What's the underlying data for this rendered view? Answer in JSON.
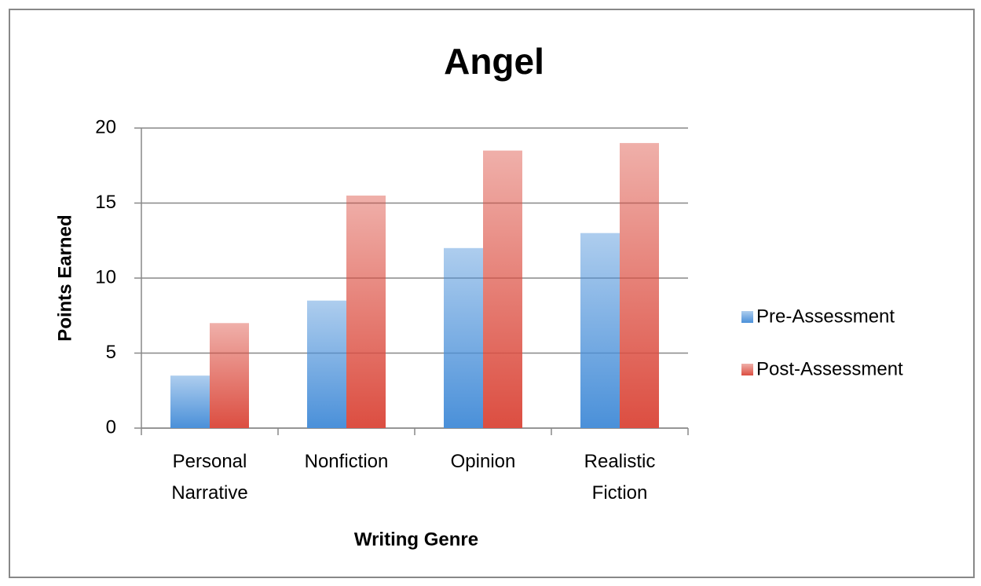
{
  "chart_data": {
    "type": "bar",
    "title": "Angel",
    "x_label": "Writing Genre",
    "y_label": "Points Earned",
    "categories": [
      "Personal Narrative",
      "Nonfiction",
      "Opinion",
      "Realistic Fiction"
    ],
    "series": [
      {
        "name": "Pre-Assessment",
        "color": "#4a90d9",
        "values": [
          3.5,
          8.5,
          12,
          13
        ]
      },
      {
        "name": "Post-Assessment",
        "color": "#dc4e41",
        "values": [
          7,
          15.5,
          18.5,
          19
        ]
      }
    ],
    "ylim": [
      0,
      20
    ],
    "yticks": [
      0,
      5,
      10,
      15,
      20
    ],
    "grid": true,
    "legend": "right"
  }
}
